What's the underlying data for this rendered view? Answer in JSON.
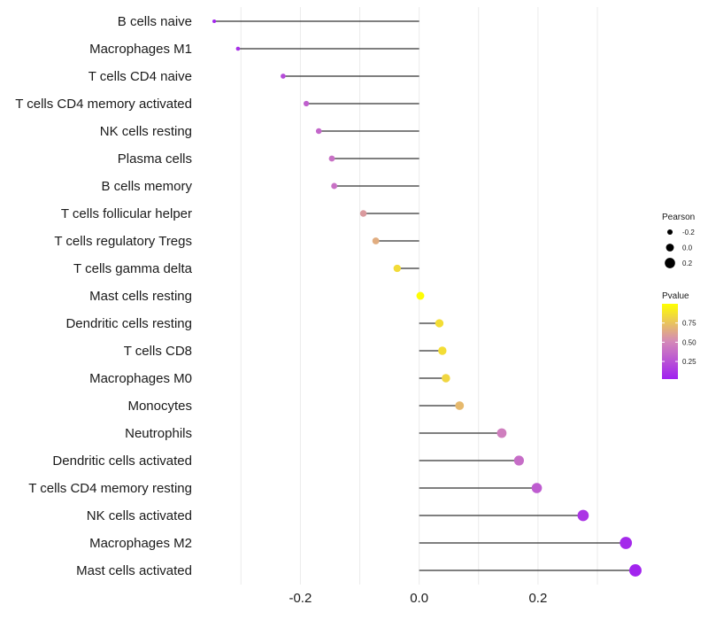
{
  "chart_data": {
    "type": "lollipop",
    "xlim": [
      -0.36,
      0.37
    ],
    "xticks": [
      -0.2,
      0.0,
      0.2
    ],
    "xtick_labels": [
      "-0.2",
      "0.0",
      "0.2"
    ],
    "baseline": 0.0,
    "categories": [
      "B cells naive",
      "Macrophages M1",
      "T cells CD4 naive",
      "T cells CD4 memory activated",
      "NK cells resting",
      "Plasma cells",
      "B cells memory",
      "T cells follicular helper",
      "T cells regulatory  Tregs",
      "T cells gamma delta",
      "Mast cells resting",
      "Dendritic cells resting",
      "T cells CD8",
      "Macrophages M0",
      "Monocytes",
      "Neutrophils",
      "Dendritic cells activated",
      "T cells CD4 memory resting",
      "NK cells activated",
      "Macrophages M2",
      "Mast cells activated"
    ],
    "pearson": [
      -0.345,
      -0.305,
      -0.229,
      -0.19,
      -0.169,
      -0.147,
      -0.143,
      -0.094,
      -0.073,
      -0.037,
      0.002,
      0.034,
      0.039,
      0.045,
      0.068,
      0.139,
      0.168,
      0.198,
      0.276,
      0.348,
      0.364
    ],
    "pvalue": [
      0.05,
      0.1,
      0.22,
      0.32,
      0.35,
      0.4,
      0.4,
      0.58,
      0.66,
      0.85,
      0.99,
      0.86,
      0.86,
      0.83,
      0.71,
      0.46,
      0.38,
      0.3,
      0.12,
      0.06,
      0.04
    ],
    "size_legend": {
      "title": "Pearson",
      "values": [
        -0.2,
        0.0,
        0.2
      ],
      "labels": [
        "-0.2",
        "0.0",
        "0.2"
      ]
    },
    "color_legend": {
      "title": "Pvalue",
      "range": [
        0.02,
        1.0
      ],
      "ticks": [
        0.25,
        0.5,
        0.75
      ],
      "tick_labels": [
        "0.25",
        "0.50",
        "0.75"
      ],
      "low_color": "#a020f0",
      "mid_color": "#d489b8",
      "high_color": "#ffff00"
    }
  }
}
